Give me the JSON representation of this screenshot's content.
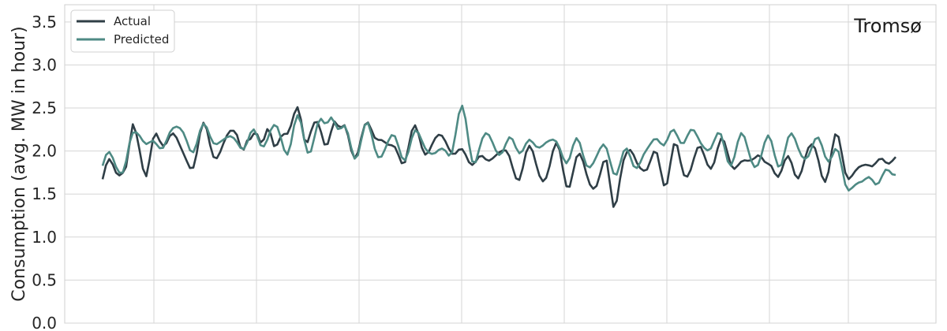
{
  "chart_data": {
    "type": "line",
    "title": "Tromsø",
    "xlabel": "",
    "ylabel": "Consumption (avg. MW in hour)",
    "ylim": [
      0,
      3.7
    ],
    "yticks": [
      "0.0",
      "0.5",
      "1.0",
      "1.5",
      "2.0",
      "2.5",
      "3.0",
      "3.5"
    ],
    "grid": true,
    "legend_position": "top-left",
    "x_count": 236,
    "series": [
      {
        "name": "Actual",
        "color": "#2f3e46",
        "keypoints": [
          [
            0,
            1.65
          ],
          [
            3,
            1.82
          ],
          [
            7,
            1.83
          ],
          [
            9,
            2.18
          ],
          [
            11,
            2.05
          ],
          [
            13,
            1.85
          ],
          [
            16,
            2.05
          ],
          [
            20,
            2.25
          ],
          [
            24,
            1.9
          ],
          [
            27,
            1.95
          ],
          [
            31,
            2.2
          ],
          [
            35,
            1.96
          ],
          [
            40,
            2.3
          ],
          [
            42,
            2.05
          ],
          [
            44,
            1.97
          ],
          [
            46,
            2.28
          ],
          [
            49,
            2.22
          ],
          [
            51,
            1.95
          ],
          [
            54,
            2.3
          ],
          [
            58,
            2.35
          ],
          [
            60,
            2.2
          ],
          [
            62,
            2.35
          ],
          [
            66,
            2.05
          ],
          [
            69,
            2.43
          ],
          [
            71,
            2.2
          ],
          [
            74,
            2.05
          ],
          [
            77,
            2.15
          ],
          [
            82,
            2.25
          ],
          [
            86,
            1.95
          ],
          [
            89,
            2.0
          ],
          [
            94,
            2.15
          ],
          [
            98,
            2.05
          ],
          [
            103,
            2.15
          ],
          [
            107,
            1.85
          ],
          [
            110,
            2.0
          ],
          [
            114,
            1.8
          ],
          [
            118,
            2.1
          ],
          [
            122,
            1.72
          ],
          [
            126,
            1.95
          ],
          [
            131,
            1.75
          ],
          [
            135,
            1.95
          ],
          [
            139,
            1.72
          ],
          [
            143,
            1.85
          ],
          [
            147,
            1.6
          ],
          [
            150,
            1.8
          ],
          [
            152,
            1.5
          ],
          [
            155,
            1.75
          ],
          [
            158,
            2.05
          ],
          [
            162,
            1.7
          ],
          [
            165,
            2.0
          ],
          [
            168,
            1.65
          ],
          [
            171,
            2.0
          ],
          [
            175,
            1.75
          ],
          [
            178,
            2.0
          ],
          [
            182,
            1.9
          ],
          [
            186,
            2.05
          ],
          [
            190,
            1.75
          ],
          [
            195,
            2.05
          ],
          [
            198,
            1.7
          ],
          [
            202,
            1.9
          ],
          [
            206,
            1.7
          ],
          [
            210,
            2.05
          ],
          [
            214,
            1.75
          ],
          [
            218,
            2.05
          ],
          [
            222,
            1.8
          ],
          [
            226,
            1.72
          ],
          [
            230,
            2.0
          ],
          [
            233,
            1.7
          ],
          [
            236,
            2.08
          ]
        ],
        "noise": [
          0.14,
          0.035
        ]
      },
      {
        "name": "Predicted",
        "color": "#4e8a84",
        "keypoints": [
          [
            0,
            1.81
          ],
          [
            3,
            1.9
          ],
          [
            6,
            1.82
          ],
          [
            9,
            2.1
          ],
          [
            12,
            2.25
          ],
          [
            16,
            1.95
          ],
          [
            20,
            2.28
          ],
          [
            24,
            2.15
          ],
          [
            28,
            2.1
          ],
          [
            32,
            2.25
          ],
          [
            36,
            2.05
          ],
          [
            40,
            2.2
          ],
          [
            43,
            2.0
          ],
          [
            46,
            2.25
          ],
          [
            49,
            2.1
          ],
          [
            52,
            2.25
          ],
          [
            55,
            2.05
          ],
          [
            58,
            2.28
          ],
          [
            62,
            2.1
          ],
          [
            66,
            2.3
          ],
          [
            68,
            2.48
          ],
          [
            71,
            2.2
          ],
          [
            75,
            2.05
          ],
          [
            79,
            2.2
          ],
          [
            83,
            2.0
          ],
          [
            87,
            2.1
          ],
          [
            91,
            2.0
          ],
          [
            95,
            2.2
          ],
          [
            99,
            1.9
          ],
          [
            103,
            2.05
          ],
          [
            107,
            2.38
          ],
          [
            111,
            1.95
          ],
          [
            115,
            2.15
          ],
          [
            120,
            2.0
          ],
          [
            124,
            2.12
          ],
          [
            128,
            2.0
          ],
          [
            132,
            2.18
          ],
          [
            136,
            1.95
          ],
          [
            140,
            2.05
          ],
          [
            144,
            1.9
          ],
          [
            149,
            1.97
          ],
          [
            153,
            1.85
          ],
          [
            157,
            1.9
          ],
          [
            162,
            1.95
          ],
          [
            166,
            2.2
          ],
          [
            170,
            2.1
          ],
          [
            174,
            2.25
          ],
          [
            178,
            2.05
          ],
          [
            182,
            2.15
          ],
          [
            186,
            1.95
          ],
          [
            190,
            2.1
          ],
          [
            194,
            1.9
          ],
          [
            198,
            2.05
          ],
          [
            202,
            1.95
          ],
          [
            206,
            2.12
          ],
          [
            210,
            1.95
          ],
          [
            214,
            2.1
          ],
          [
            218,
            1.9
          ],
          [
            222,
            1.65
          ],
          [
            226,
            1.55
          ],
          [
            229,
            1.78
          ],
          [
            232,
            1.6
          ],
          [
            236,
            1.85
          ]
        ],
        "noise": [
          0.12,
          0.03
        ]
      }
    ]
  }
}
